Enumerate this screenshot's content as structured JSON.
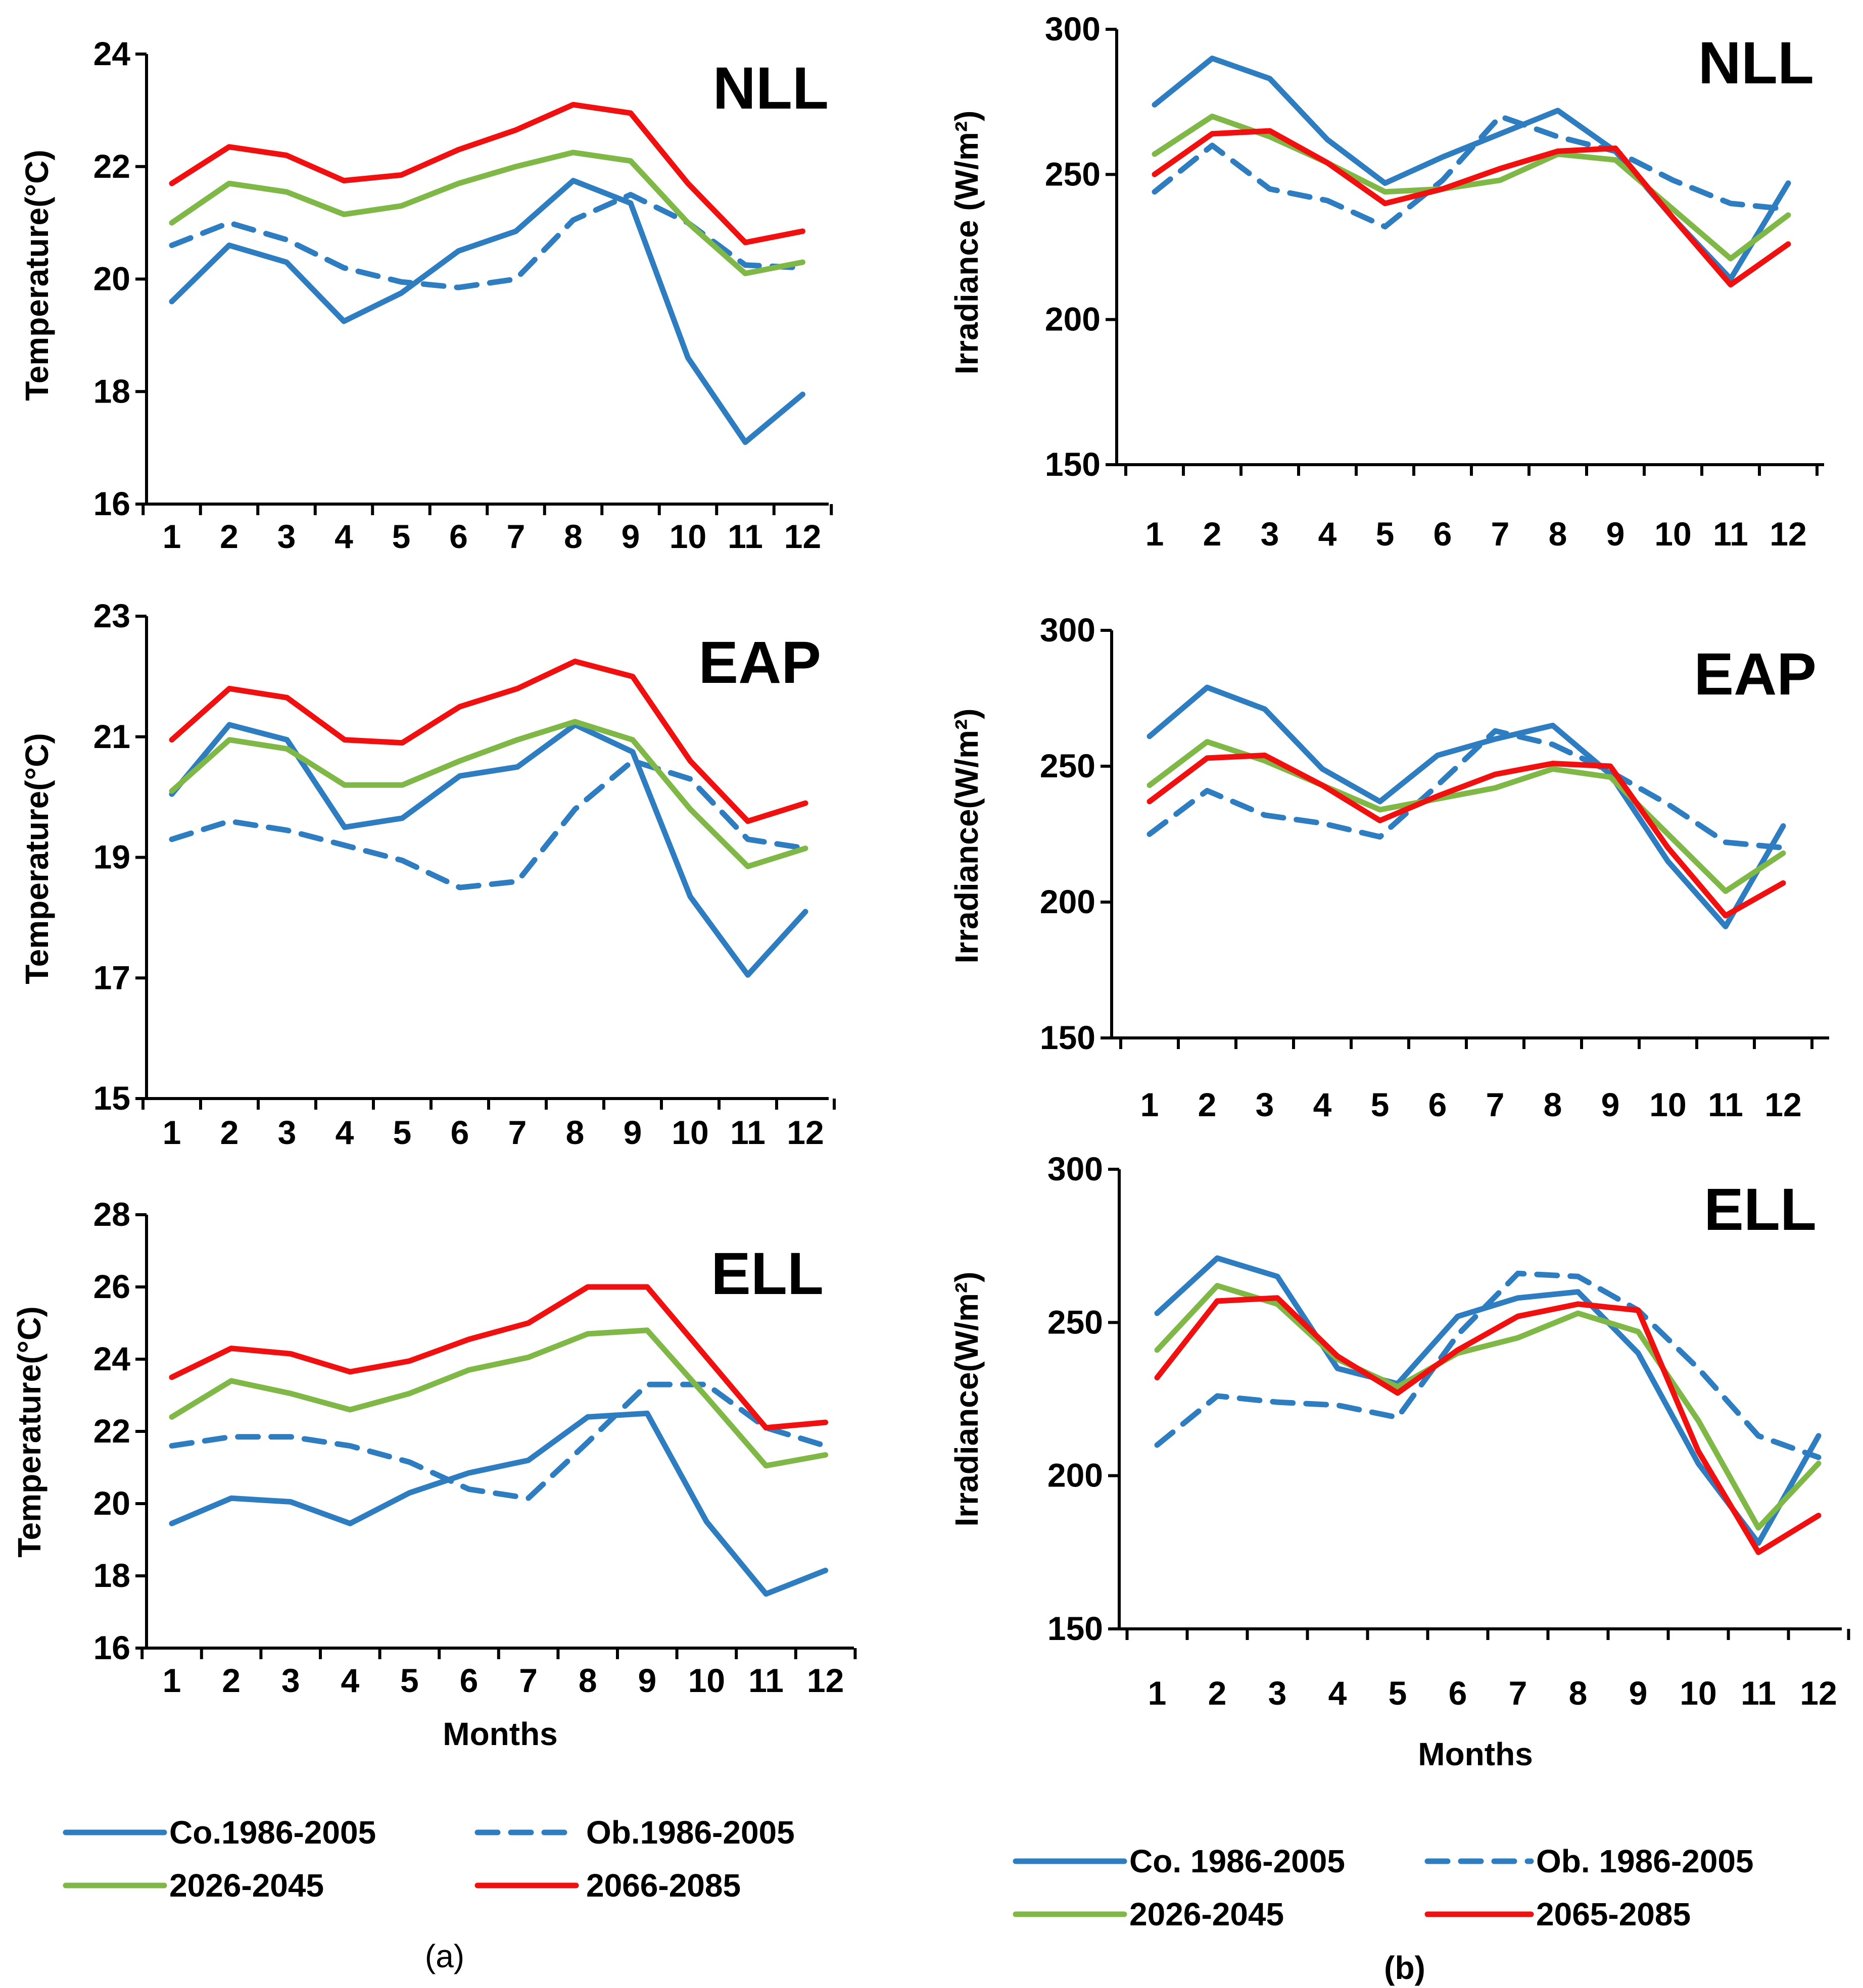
{
  "colors": {
    "co": "#2E7DC1",
    "ob": "#2E7DC1",
    "near": "#7FB847",
    "far": "#F01010"
  },
  "panel_labels": {
    "a": "(a)",
    "b": "(b)"
  },
  "legends": {
    "a": {
      "co": "Co.1986-2005",
      "ob": "Ob.1986-2005",
      "near": "2026-2045",
      "far": "2066-2085"
    },
    "b": {
      "co": "Co. 1986-2005",
      "ob": "Ob. 1986-2005",
      "near": "2026-2045",
      "far": "2065-2085"
    }
  },
  "months_label": "Months",
  "chart_data": [
    {
      "id": "temp-nll",
      "type": "line",
      "region": "NLL",
      "title": "NLL",
      "xlabel": "",
      "ylabel": "Temperature(°C)",
      "categories": [
        "1",
        "2",
        "3",
        "4",
        "5",
        "6",
        "7",
        "8",
        "9",
        "10",
        "11",
        "12"
      ],
      "yticks": [
        "16",
        "18",
        "20",
        "22",
        "24"
      ],
      "ylim": [
        16,
        24
      ],
      "series": [
        {
          "key": "co",
          "name": "Co.1986-2005",
          "values": [
            19.6,
            20.6,
            20.3,
            19.25,
            19.75,
            20.5,
            20.85,
            21.75,
            21.35,
            18.6,
            17.1,
            17.95
          ]
        },
        {
          "key": "ob",
          "name": "Ob.1986-2005",
          "values": [
            20.6,
            21.0,
            20.7,
            20.2,
            19.95,
            19.85,
            20.0,
            21.05,
            21.5,
            21.0,
            20.25,
            20.2
          ]
        },
        {
          "key": "near",
          "name": "2026-2045",
          "values": [
            21.0,
            21.7,
            21.55,
            21.15,
            21.3,
            21.7,
            22.0,
            22.25,
            22.1,
            21.0,
            20.1,
            20.3
          ]
        },
        {
          "key": "far",
          "name": "2066-2085",
          "values": [
            21.7,
            22.35,
            22.2,
            21.75,
            21.85,
            22.3,
            22.65,
            23.1,
            22.95,
            21.7,
            20.65,
            20.85
          ]
        }
      ]
    },
    {
      "id": "temp-eap",
      "type": "line",
      "region": "EAP",
      "title": "EAP",
      "xlabel": "",
      "ylabel": "Temperature(°C)",
      "categories": [
        "1",
        "2",
        "3",
        "4",
        "5",
        "6",
        "7",
        "8",
        "9",
        "10",
        "11",
        "12"
      ],
      "yticks": [
        "15",
        "17",
        "19",
        "21",
        "23"
      ],
      "ylim": [
        15,
        23
      ],
      "series": [
        {
          "key": "co",
          "name": "Co.1986-2005",
          "values": [
            20.05,
            21.2,
            20.95,
            19.5,
            19.65,
            20.35,
            20.5,
            21.2,
            20.75,
            18.35,
            17.05,
            18.1
          ]
        },
        {
          "key": "ob",
          "name": "Ob.1986-2005",
          "values": [
            19.3,
            19.6,
            19.45,
            19.2,
            18.95,
            18.5,
            18.6,
            19.8,
            20.6,
            20.3,
            19.3,
            19.15
          ]
        },
        {
          "key": "near",
          "name": "2026-2045",
          "values": [
            20.1,
            20.95,
            20.8,
            20.2,
            20.2,
            20.6,
            20.95,
            21.25,
            20.95,
            19.8,
            18.85,
            19.15
          ]
        },
        {
          "key": "far",
          "name": "2066-2085",
          "values": [
            20.95,
            21.8,
            21.65,
            20.95,
            20.9,
            21.5,
            21.8,
            22.25,
            22.0,
            20.6,
            19.6,
            19.9
          ]
        }
      ]
    },
    {
      "id": "temp-ell",
      "type": "line",
      "region": "ELL",
      "title": "ELL",
      "xlabel": "Months",
      "ylabel": "Temperature(°C)",
      "categories": [
        "1",
        "2",
        "3",
        "4",
        "5",
        "6",
        "7",
        "8",
        "9",
        "10",
        "11",
        "12"
      ],
      "yticks": [
        "16",
        "18",
        "20",
        "22",
        "24",
        "26",
        "28"
      ],
      "ylim": [
        16,
        28
      ],
      "series": [
        {
          "key": "co",
          "name": "Co.1986-2005",
          "values": [
            19.45,
            20.15,
            20.05,
            19.45,
            20.3,
            20.85,
            21.2,
            22.4,
            22.5,
            19.5,
            17.5,
            18.15
          ]
        },
        {
          "key": "ob",
          "name": "Ob.1986-2005",
          "values": [
            21.6,
            21.85,
            21.85,
            21.6,
            21.15,
            20.4,
            20.15,
            21.7,
            23.3,
            23.3,
            22.1,
            21.6
          ]
        },
        {
          "key": "near",
          "name": "2026-2045",
          "values": [
            22.4,
            23.4,
            23.05,
            22.6,
            23.05,
            23.7,
            24.05,
            24.7,
            24.8,
            22.95,
            21.05,
            21.35
          ]
        },
        {
          "key": "far",
          "name": "2066-2085",
          "values": [
            23.5,
            24.3,
            24.15,
            23.65,
            23.95,
            24.55,
            25.0,
            26.0,
            26.0,
            24.05,
            22.1,
            22.25
          ]
        }
      ]
    },
    {
      "id": "irr-nll",
      "type": "line",
      "region": "NLL",
      "title": "NLL",
      "xlabel": "",
      "ylabel": "Irradiance (W/m²)",
      "categories": [
        "1",
        "2",
        "3",
        "4",
        "5",
        "6",
        "7",
        "8",
        "9",
        "10",
        "11",
        "12"
      ],
      "yticks": [
        "150",
        "200",
        "250",
        "300"
      ],
      "ylim": [
        150,
        300
      ],
      "series": [
        {
          "key": "co",
          "name": "Co. 1986-2005",
          "values": [
            274,
            290,
            283,
            262,
            247,
            256,
            264,
            272,
            258,
            235,
            214,
            247
          ]
        },
        {
          "key": "ob",
          "name": "Ob. 1986-2005",
          "values": [
            244,
            260,
            245,
            241,
            232,
            248,
            270,
            263,
            258,
            248,
            240,
            238
          ]
        },
        {
          "key": "near",
          "name": "2026-2045",
          "values": [
            257,
            270,
            263,
            254,
            244,
            245,
            248,
            257,
            255,
            238,
            221,
            236
          ]
        },
        {
          "key": "far",
          "name": "2065-2085",
          "values": [
            250,
            264,
            265,
            254,
            240,
            245,
            252,
            258,
            259,
            235,
            212,
            226
          ]
        }
      ]
    },
    {
      "id": "irr-eap",
      "type": "line",
      "region": "EAP",
      "title": "EAP",
      "xlabel": "",
      "ylabel": "Irradiance(W/m²)",
      "categories": [
        "1",
        "2",
        "3",
        "4",
        "5",
        "6",
        "7",
        "8",
        "9",
        "10",
        "11",
        "12"
      ],
      "yticks": [
        "150",
        "200",
        "250",
        "300"
      ],
      "ylim": [
        150,
        300
      ],
      "series": [
        {
          "key": "co",
          "name": "Co. 1986-2005",
          "values": [
            261,
            279,
            271,
            249,
            237,
            254,
            260,
            265,
            247,
            215,
            191,
            228
          ]
        },
        {
          "key": "ob",
          "name": "Ob. 1986-2005",
          "values": [
            225,
            241,
            232,
            229,
            224,
            243,
            263,
            258,
            248,
            236,
            222,
            220
          ]
        },
        {
          "key": "near",
          "name": "2026-2045",
          "values": [
            243,
            259,
            252,
            243,
            234,
            238,
            242,
            249,
            246,
            225,
            204,
            218
          ]
        },
        {
          "key": "far",
          "name": "2065-2085",
          "values": [
            237,
            253,
            254,
            243,
            230,
            239,
            247,
            251,
            250,
            220,
            195,
            207
          ]
        }
      ]
    },
    {
      "id": "irr-ell",
      "type": "line",
      "region": "ELL",
      "title": "ELL",
      "xlabel": "Months",
      "ylabel": "Irradiance(W/m²)",
      "categories": [
        "1",
        "2",
        "3",
        "4",
        "5",
        "6",
        "7",
        "8",
        "9",
        "10",
        "11",
        "12"
      ],
      "yticks": [
        "150",
        "200",
        "250",
        "300"
      ],
      "ylim": [
        150,
        300
      ],
      "series": [
        {
          "key": "co",
          "name": "Co. 1986-2005",
          "values": [
            253,
            271,
            265,
            235,
            230,
            252,
            258,
            260,
            240,
            204,
            178,
            213
          ]
        },
        {
          "key": "ob",
          "name": "Ob. 1986-2005",
          "values": [
            210,
            226,
            224,
            223,
            219,
            246,
            266,
            265,
            254,
            235,
            213,
            206
          ]
        },
        {
          "key": "near",
          "name": "2026-2045",
          "values": [
            241,
            262,
            256,
            238,
            229,
            240,
            245,
            253,
            247,
            218,
            183,
            204
          ]
        },
        {
          "key": "far",
          "name": "2065-2085",
          "values": [
            232,
            257,
            258,
            239,
            227,
            241,
            252,
            256,
            254,
            208,
            175,
            187
          ]
        }
      ]
    }
  ]
}
